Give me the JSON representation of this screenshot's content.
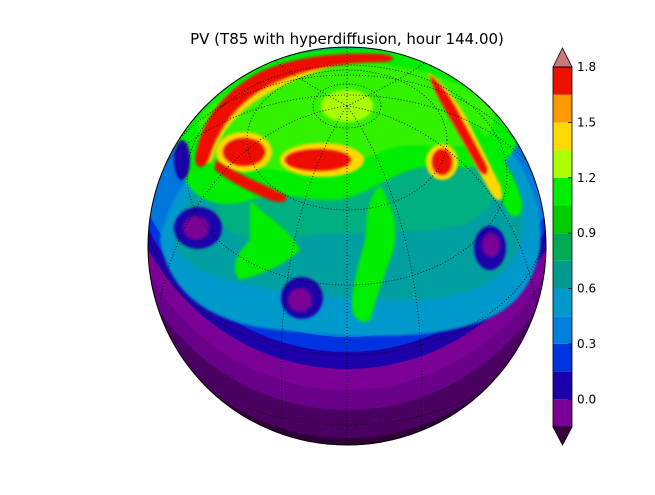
{
  "chart_data": {
    "type": "heatmap",
    "title": "PV (T85 with hyperdiffusion, hour 144.00)",
    "projection": "orthographic",
    "grid": true,
    "legend": "colorbar-right",
    "colorbar": {
      "extend": "both",
      "range": [
        -0.15,
        1.8
      ],
      "levels": [
        -0.15,
        0.0,
        0.15,
        0.3,
        0.45,
        0.6,
        0.75,
        0.9,
        1.05,
        1.2,
        1.35,
        1.5,
        1.65,
        1.8
      ],
      "colors": [
        "#7a0096",
        "#1c00aa",
        "#0033e0",
        "#0080dd",
        "#0099cc",
        "#009a8f",
        "#00aa55",
        "#00cc00",
        "#00ee00",
        "#aaff00",
        "#ffd800",
        "#ff9900",
        "#ee1100",
        "#cc0000"
      ],
      "under_color": "#3a0040",
      "over_color": "#cc7777",
      "ticks": [
        0.0,
        0.3,
        0.6,
        0.9,
        1.2,
        1.5,
        1.8
      ],
      "tick_labels": [
        "0.0",
        "0.3",
        "0.6",
        "0.9",
        "1.2",
        "1.5",
        "1.8"
      ]
    }
  }
}
